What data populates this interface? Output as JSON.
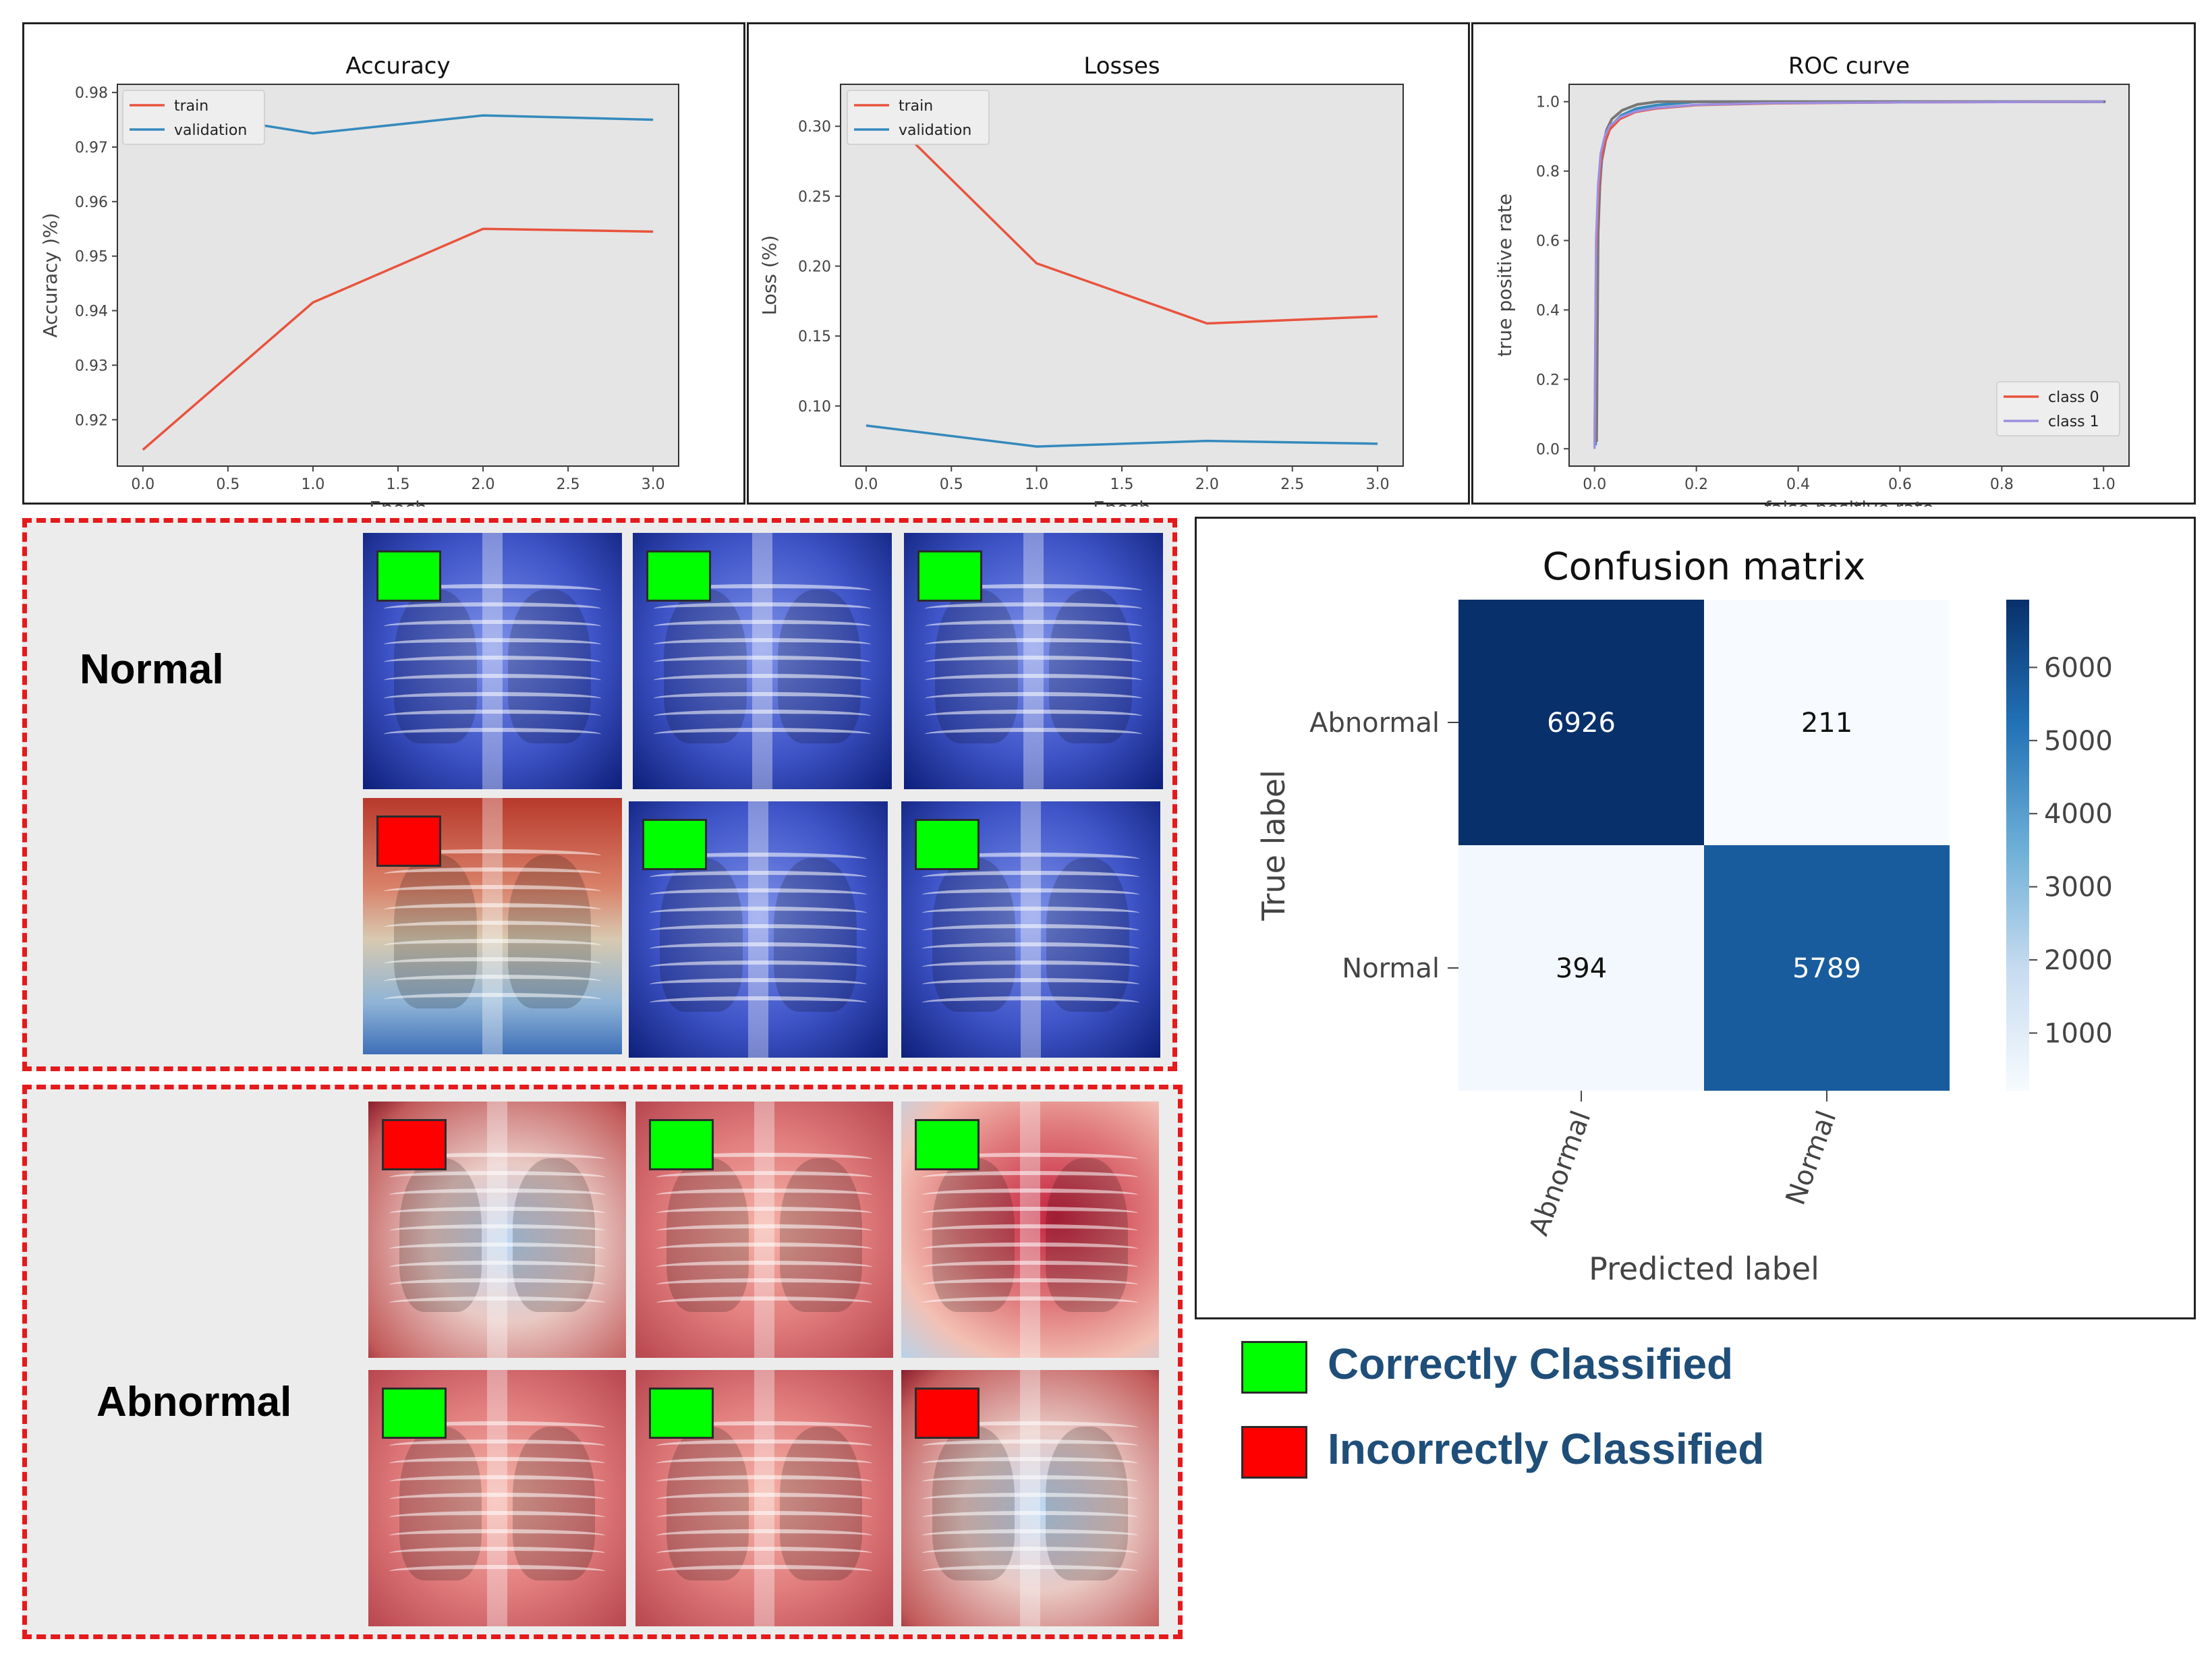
{
  "chart_data": [
    {
      "type": "line",
      "title": "Accuracy",
      "xlabel": "Epoch",
      "ylabel": "Accuracy )%)",
      "x": [
        0,
        1,
        2,
        3
      ],
      "xlim": [
        -0.15,
        3.15
      ],
      "ylim": [
        0.9115,
        0.9815
      ],
      "xticks": [
        "0.0",
        "0.5",
        "1.0",
        "1.5",
        "2.0",
        "2.5",
        "3.0"
      ],
      "yticks": [
        "0.92",
        "0.93",
        "0.94",
        "0.95",
        "0.96",
        "0.97",
        "0.98"
      ],
      "series": [
        {
          "name": "train",
          "color": "#e8533d",
          "values": [
            0.9145,
            0.9415,
            0.955,
            0.9545
          ]
        },
        {
          "name": "validation",
          "color": "#348abd",
          "values": [
            0.9775,
            0.9725,
            0.9758,
            0.975
          ]
        }
      ]
    },
    {
      "type": "line",
      "title": "Losses",
      "xlabel": "Epoch",
      "ylabel": "Loss (%)",
      "x": [
        0,
        1,
        2,
        3
      ],
      "xlim": [
        -0.15,
        3.15
      ],
      "ylim": [
        0.057,
        0.33
      ],
      "xticks": [
        "0.0",
        "0.5",
        "1.0",
        "1.5",
        "2.0",
        "2.5",
        "3.0"
      ],
      "yticks": [
        "0.10",
        "0.15",
        "0.20",
        "0.25",
        "0.30"
      ],
      "series": [
        {
          "name": "train",
          "color": "#e8533d",
          "values": [
            0.322,
            0.202,
            0.159,
            0.164
          ]
        },
        {
          "name": "validation",
          "color": "#348abd",
          "values": [
            0.086,
            0.071,
            0.075,
            0.073
          ]
        }
      ]
    },
    {
      "type": "line",
      "title": "ROC curve",
      "xlabel": "false positive rate",
      "ylabel": "true positive rate",
      "xlim": [
        -0.05,
        1.05
      ],
      "ylim": [
        -0.05,
        1.05
      ],
      "xticks": [
        "0.0",
        "0.2",
        "0.4",
        "0.6",
        "0.8",
        "1.0"
      ],
      "yticks": [
        "0.0",
        "0.2",
        "0.4",
        "0.6",
        "0.8",
        "1.0"
      ],
      "series": [
        {
          "name": "class 0",
          "color": "#e8533d",
          "x": [
            0,
            0.003,
            0.007,
            0.012,
            0.02,
            0.03,
            0.05,
            0.08,
            0.12,
            0.2,
            0.35,
            0.6,
            0.8,
            1.0
          ],
          "y": [
            0,
            0.55,
            0.72,
            0.82,
            0.88,
            0.92,
            0.95,
            0.97,
            0.98,
            0.99,
            0.995,
            0.998,
            0.999,
            1.0
          ]
        },
        {
          "name": "class 1",
          "color": "#9d8ee0",
          "x": [
            0,
            0.003,
            0.007,
            0.012,
            0.02,
            0.03,
            0.05,
            0.08,
            0.12,
            0.2,
            0.35,
            0.6,
            0.8,
            1.0
          ],
          "y": [
            0,
            0.6,
            0.76,
            0.85,
            0.9,
            0.93,
            0.955,
            0.972,
            0.982,
            0.991,
            0.996,
            0.998,
            0.999,
            1.0
          ]
        }
      ],
      "extra_curve_colors": [
        "#348abd",
        "#777777"
      ]
    },
    {
      "type": "heatmap",
      "title": "Confusion matrix",
      "xlabel": "Predicted label",
      "ylabel": "True label",
      "row_labels": [
        "Abnormal",
        "Normal"
      ],
      "col_labels": [
        "Abnormal",
        "Normal"
      ],
      "values": [
        [
          6926,
          211
        ],
        [
          394,
          5789
        ]
      ],
      "colorbar_ticks": [
        "1000",
        "2000",
        "3000",
        "4000",
        "5000",
        "6000"
      ],
      "colorbar_range": [
        211,
        6926
      ]
    }
  ],
  "groups": {
    "normal_label": "Normal",
    "abnormal_label": "Abnormal",
    "normal_markers": [
      "correct",
      "correct",
      "correct",
      "incorrect",
      "correct",
      "correct"
    ],
    "abnormal_markers": [
      "incorrect",
      "correct",
      "correct",
      "correct",
      "correct",
      "incorrect"
    ]
  },
  "legend": {
    "correct_label": "Correctly Classified",
    "incorrect_label": "Incorrectly Classified",
    "correct_color": "#00ff00",
    "incorrect_color": "#ff0000"
  }
}
